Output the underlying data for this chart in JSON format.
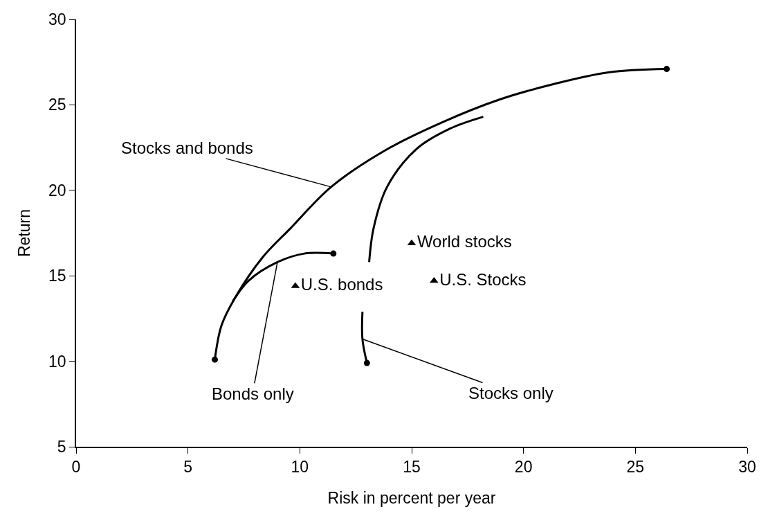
{
  "chart_data": {
    "type": "line",
    "xlabel": "Risk in percent per year",
    "ylabel": "Return",
    "xlim": [
      0,
      30
    ],
    "xticks": [
      0,
      5,
      10,
      15,
      20,
      25,
      30
    ],
    "ylim": [
      5,
      30
    ],
    "yticks": [
      5,
      10,
      15,
      20,
      25,
      30
    ],
    "legend": false,
    "series": [
      {
        "color": "#000000",
        "x": [
          6.2,
          6.5,
          7.1,
          8.35,
          9.6,
          11.4,
          13.9,
          16.4,
          18.9,
          21.3,
          23.8,
          26.4
        ],
        "values": [
          10.1,
          12.1,
          13.7,
          16.1,
          17.8,
          20.2,
          22.4,
          24.0,
          25.3,
          26.2,
          26.9,
          27.1
        ]
      },
      {
        "color": "#000000",
        "x": [
          7.0,
          7.7,
          9.0,
          10.2,
          11.5
        ],
        "values": [
          13.5,
          14.7,
          15.8,
          16.3,
          16.3
        ]
      },
      {
        "color": "#000000",
        "x": [
          12.8,
          12.8,
          13.0,
          13.05,
          13.1,
          13.3,
          13.9,
          15.2,
          16.7,
          18.2
        ],
        "values": [
          12.9,
          11.3,
          9.9,
          null,
          15.8,
          17.8,
          20.2,
          22.4,
          23.6,
          24.3
        ]
      },
      {
        "type": "scatter",
        "color": "#000000",
        "marker": "circle",
        "x": [
          6.2,
          11.5,
          13.0,
          26.4
        ],
        "values": [
          10.1,
          16.3,
          9.9,
          27.1
        ]
      },
      {
        "type": "scatter",
        "name": "World stocks",
        "color": "#000000",
        "marker": "triangle",
        "x": [
          15.0
        ],
        "values": [
          16.9
        ]
      },
      {
        "type": "scatter",
        "name": "U.S. Stocks",
        "color": "#000000",
        "marker": "triangle",
        "x": [
          16.0
        ],
        "values": [
          14.7
        ]
      },
      {
        "type": "scatter",
        "name": "U.S. bonds",
        "color": "#000000",
        "marker": "triangle",
        "x": [
          9.8
        ],
        "values": [
          14.4
        ]
      }
    ],
    "annotations": [
      {
        "text": "Stocks and bonds",
        "x": 11.4,
        "y": 20.2
      },
      {
        "text": "Bonds only",
        "x": 9.0,
        "y": 15.8
      },
      {
        "text": "Stocks only",
        "x": 12.8,
        "y": 11.3
      }
    ]
  }
}
